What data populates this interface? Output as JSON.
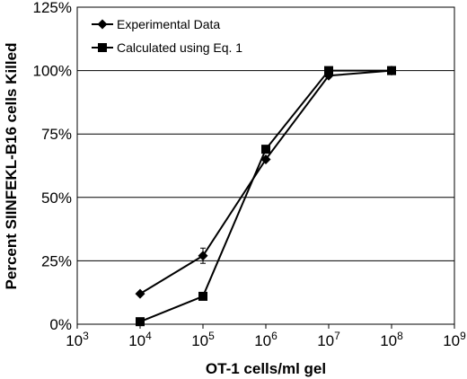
{
  "chart_data": {
    "type": "line",
    "xlabel": "OT-1 cells/ml gel",
    "ylabel": "Percent SIINFEKL-B16 cells Killed",
    "x_scale": "log10",
    "x_exponent_range": [
      3,
      9
    ],
    "xlim": [
      1000,
      1000000000
    ],
    "ylim": [
      0,
      125
    ],
    "y_ticks": [
      0,
      25,
      50,
      75,
      100,
      125
    ],
    "y_tick_labels": [
      "0%",
      "25%",
      "50%",
      "75%",
      "100%",
      "125%"
    ],
    "x_ticks": [
      1000,
      10000,
      100000,
      1000000,
      10000000,
      100000000,
      1000000000
    ],
    "x_tick_base": "10",
    "x_tick_exponents": [
      "3",
      "4",
      "5",
      "6",
      "7",
      "8",
      "9"
    ],
    "grid": "horizontal",
    "legend_position": "top-left",
    "series": [
      {
        "name": "Experimental Data",
        "marker": "diamond",
        "color": "#000000",
        "x": [
          10000,
          100000,
          1000000,
          10000000,
          100000000
        ],
        "y": [
          12,
          27,
          65,
          98,
          100
        ],
        "error": [
          0,
          3,
          0,
          0,
          0
        ]
      },
      {
        "name": "Calculated using Eq. 1",
        "marker": "square",
        "color": "#000000",
        "x": [
          10000,
          100000,
          1000000,
          10000000,
          100000000
        ],
        "y": [
          1,
          11,
          69,
          100,
          100
        ]
      }
    ]
  }
}
